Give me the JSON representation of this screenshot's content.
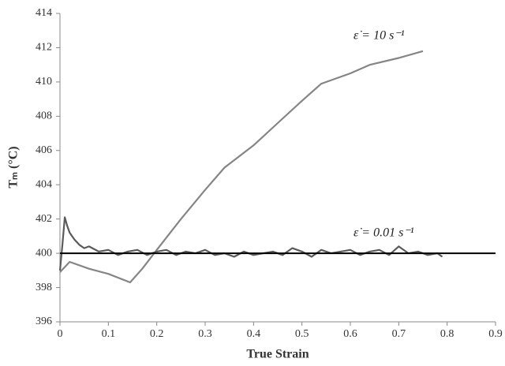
{
  "chart_data": {
    "type": "line",
    "xlabel": "True Strain",
    "ylabel": "Tₘ (°C)",
    "xlim": [
      0,
      0.9
    ],
    "xticks": [
      0,
      0.1,
      0.2,
      0.3,
      0.4,
      0.5,
      0.6,
      0.7,
      0.8,
      0.9
    ],
    "ylim": [
      396,
      414
    ],
    "yticks": [
      396,
      398,
      400,
      402,
      404,
      406,
      408,
      410,
      412,
      414
    ],
    "annotations": [
      "ε̇ = 10 s⁻¹",
      "ε̇ = 0.01 s⁻¹"
    ],
    "series": [
      {
        "color": "#858585",
        "x": [
          0,
          0.02,
          0.06,
          0.1,
          0.145,
          0.17,
          0.2,
          0.25,
          0.3,
          0.34,
          0.4,
          0.45,
          0.5,
          0.54,
          0.6,
          0.64,
          0.7,
          0.75
        ],
        "values": [
          398.9,
          399.5,
          399.1,
          398.8,
          398.3,
          399.1,
          400.2,
          402,
          403.7,
          405,
          406.3,
          407.6,
          408.9,
          409.9,
          410.5,
          411,
          411.4,
          411.8
        ]
      },
      {
        "color": "#5a5a5a",
        "x": [
          0,
          0.005,
          0.01,
          0.015,
          0.02,
          0.03,
          0.04,
          0.05,
          0.06,
          0.08,
          0.1,
          0.12,
          0.14,
          0.16,
          0.18,
          0.2,
          0.22,
          0.24,
          0.26,
          0.28,
          0.3,
          0.32,
          0.34,
          0.36,
          0.38,
          0.4,
          0.42,
          0.44,
          0.46,
          0.48,
          0.5,
          0.52,
          0.54,
          0.56,
          0.58,
          0.6,
          0.62,
          0.64,
          0.66,
          0.68,
          0.7,
          0.72,
          0.74,
          0.76,
          0.78,
          0.79
        ],
        "values": [
          399,
          400.5,
          402.1,
          401.6,
          401.2,
          400.8,
          400.5,
          400.3,
          400.4,
          400.1,
          400.2,
          399.9,
          400.1,
          400.2,
          399.9,
          400.1,
          400.2,
          399.9,
          400.1,
          400,
          400.2,
          399.9,
          400,
          399.8,
          400.1,
          399.9,
          400,
          400.1,
          399.9,
          400.3,
          400.1,
          399.8,
          400.2,
          400,
          400.1,
          400.2,
          399.9,
          400.1,
          400.2,
          399.9,
          400.4,
          400,
          400.1,
          399.9,
          400,
          399.8
        ]
      },
      {
        "color": "#000000",
        "x": [
          0,
          0.9
        ],
        "values": [
          400,
          400
        ]
      }
    ]
  }
}
